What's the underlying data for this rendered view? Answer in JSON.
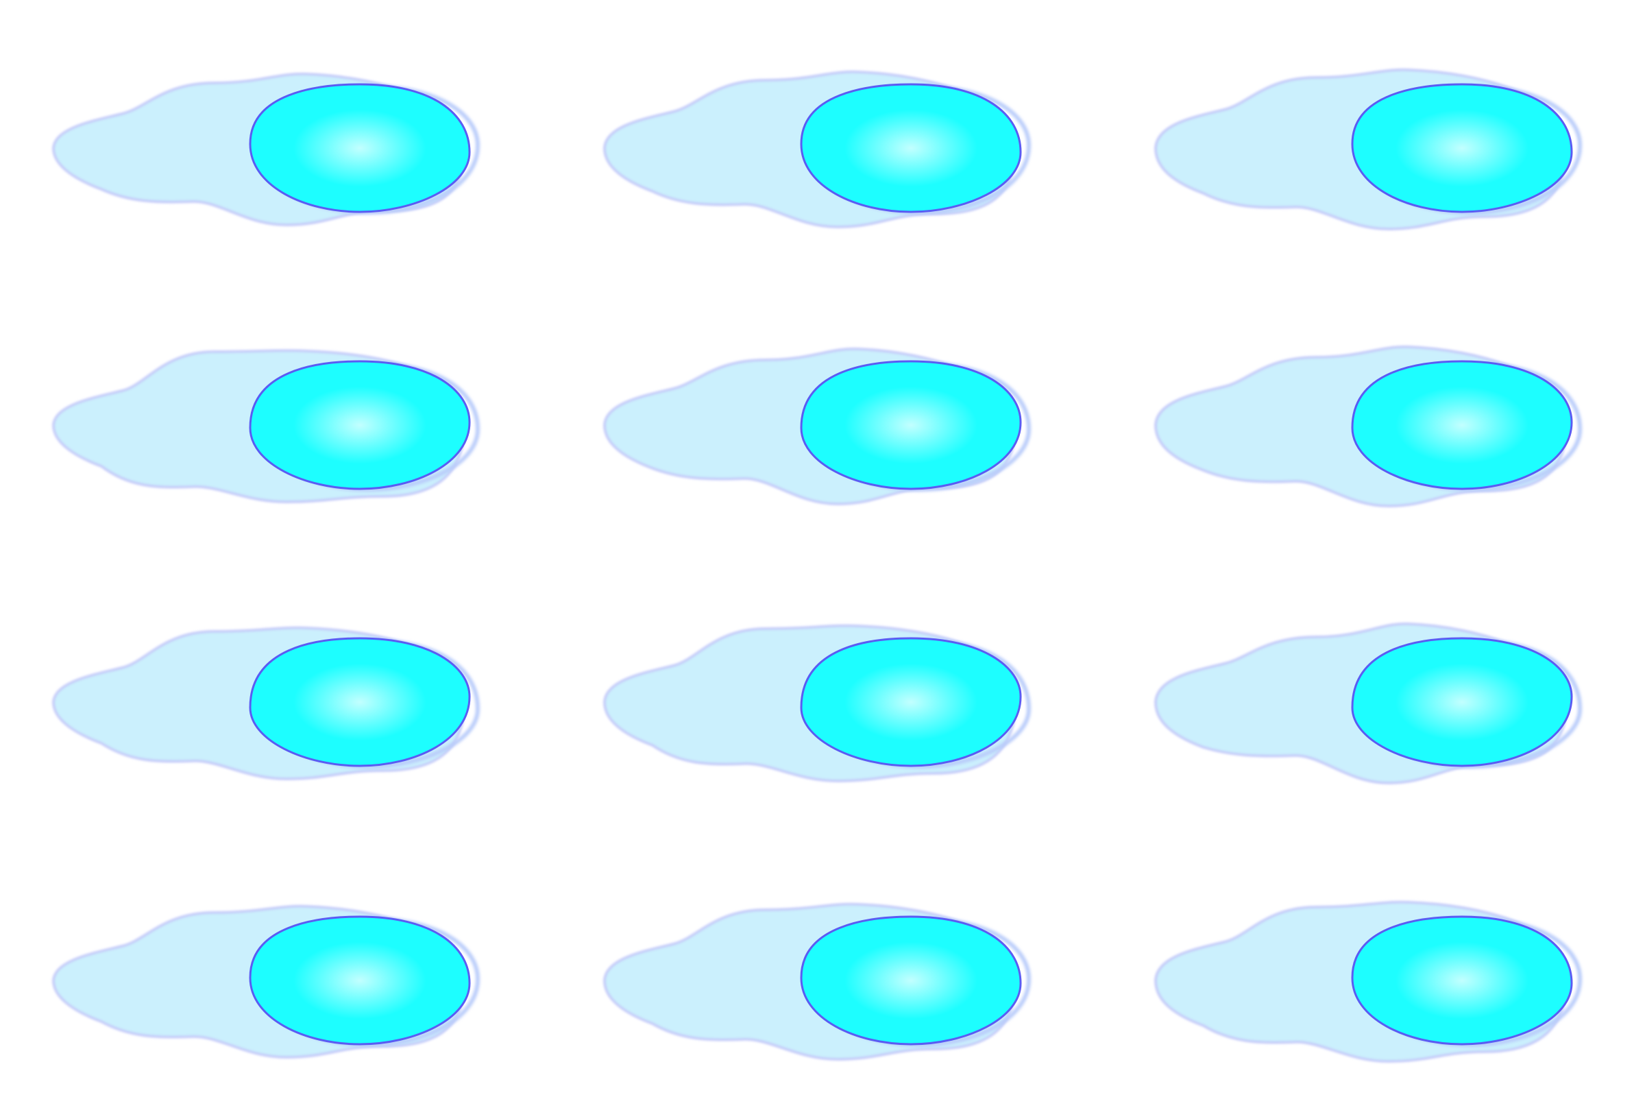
{
  "background_color": "#ffffff",
  "colors": {
    "tail_fill": "#cbf0fd",
    "tail_edge": "#c6cdf9",
    "head_center": "#c2ffff",
    "head_fill": "#1dfeff",
    "head_edge": "#5a5cf3",
    "head_ghost": "#b9ccfa"
  },
  "grid": {
    "rows": 4,
    "columns": 3
  },
  "sprites": [
    {
      "name": "sprite-frame-1",
      "shape": "comet-blob-icon"
    },
    {
      "name": "sprite-frame-2",
      "shape": "comet-blob-icon"
    },
    {
      "name": "sprite-frame-3",
      "shape": "comet-blob-icon"
    },
    {
      "name": "sprite-frame-4",
      "shape": "comet-blob-icon"
    },
    {
      "name": "sprite-frame-5",
      "shape": "comet-blob-icon"
    },
    {
      "name": "sprite-frame-6",
      "shape": "comet-blob-icon"
    },
    {
      "name": "sprite-frame-7",
      "shape": "comet-blob-icon"
    },
    {
      "name": "sprite-frame-8",
      "shape": "comet-blob-icon"
    },
    {
      "name": "sprite-frame-9",
      "shape": "comet-blob-icon"
    },
    {
      "name": "sprite-frame-10",
      "shape": "comet-blob-icon"
    },
    {
      "name": "sprite-frame-11",
      "shape": "comet-blob-icon"
    },
    {
      "name": "sprite-frame-12",
      "shape": "comet-blob-icon"
    }
  ]
}
